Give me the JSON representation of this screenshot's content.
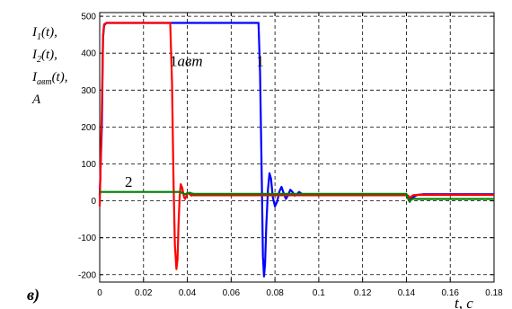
{
  "chart_data": {
    "type": "line",
    "panel_label": "в)",
    "ylabel_lines": [
      {
        "base": "I",
        "sub": "1",
        "suffix": "(t),"
      },
      {
        "base": "I",
        "sub": "2",
        "suffix": "(t),"
      },
      {
        "base": "I",
        "sub": "авт",
        "suffix": "(t),"
      },
      {
        "base": "A",
        "sub": "",
        "suffix": ""
      }
    ],
    "xlabel": "t, c",
    "xlim": [
      0,
      0.18
    ],
    "ylim": [
      -220,
      510
    ],
    "xticks": [
      0,
      0.02,
      0.04,
      0.06,
      0.08,
      0.1,
      0.12,
      0.14,
      0.16,
      0.18
    ],
    "xtick_labels": [
      "0",
      "0.02",
      "0.04",
      "0.06",
      "0.08",
      "0.1",
      "0.12",
      "0.14",
      "0.16",
      "0.18"
    ],
    "yticks": [
      -200,
      -100,
      0,
      100,
      200,
      300,
      400,
      500
    ],
    "ytick_labels": [
      "-200",
      "-100",
      "0",
      "100",
      "200",
      "300",
      "400",
      "500"
    ],
    "grid": true,
    "grid_style": "dashed",
    "series": [
      {
        "name": "1",
        "color": "#0000ff",
        "x": [
          0,
          0.001,
          0.0015,
          0.002,
          0.003,
          0.07,
          0.0725,
          0.0732,
          0.074,
          0.0745,
          0.075,
          0.0755,
          0.076,
          0.0768,
          0.0775,
          0.0782,
          0.079,
          0.08,
          0.081,
          0.082,
          0.083,
          0.084,
          0.085,
          0.086,
          0.087,
          0.088,
          0.089,
          0.09,
          0.091,
          0.092,
          0.093,
          0.094,
          0.095,
          0.1,
          0.14,
          0.1412,
          0.142,
          0.143,
          0.145,
          0.148,
          0.18
        ],
        "y": [
          15,
          200,
          440,
          475,
          482,
          482,
          482,
          350,
          50,
          -150,
          -205,
          -170,
          -70,
          30,
          75,
          60,
          10,
          -15,
          -2,
          25,
          38,
          20,
          5,
          15,
          30,
          24,
          14,
          18,
          24,
          20,
          15,
          17,
          17,
          17,
          17,
          10,
          3,
          10,
          16,
          18,
          18
        ]
      },
      {
        "name": "1авт",
        "color": "#ff0000",
        "x": [
          0,
          0.001,
          0.0015,
          0.002,
          0.003,
          0.03,
          0.0322,
          0.033,
          0.0337,
          0.0343,
          0.035,
          0.0355,
          0.036,
          0.0365,
          0.037,
          0.0377,
          0.0385,
          0.039,
          0.0395,
          0.04,
          0.041,
          0.042,
          0.0425,
          0.043,
          0.05,
          0.07,
          0.08,
          0.14,
          0.1408,
          0.1415,
          0.143,
          0.145,
          0.18
        ],
        "y": [
          -15,
          250,
          450,
          478,
          482,
          482,
          482,
          320,
          50,
          -120,
          -185,
          -160,
          -60,
          10,
          45,
          35,
          10,
          5,
          12,
          22,
          18,
          14,
          16,
          15,
          15,
          15,
          15,
          15,
          14,
          8,
          15,
          16,
          16
        ]
      },
      {
        "name": "2",
        "color": "#007f00",
        "x": [
          0,
          0.035,
          0.036,
          0.037,
          0.038,
          0.039,
          0.04,
          0.041,
          0.042,
          0.043,
          0.045,
          0.075,
          0.14,
          0.1408,
          0.1415,
          0.142,
          0.143,
          0.145,
          0.18
        ],
        "y": [
          24,
          24,
          24,
          24,
          20,
          18,
          20,
          22,
          20,
          19,
          19,
          19,
          19,
          5,
          -3,
          2,
          6,
          5,
          5
        ]
      }
    ],
    "annotations": [
      {
        "text": "1авт",
        "anchor": [
          0.032,
          365
        ]
      },
      {
        "text": "1",
        "anchor": [
          0.0715,
          365
        ]
      },
      {
        "text": "2",
        "anchor": [
          0.0115,
          38
        ]
      }
    ]
  }
}
